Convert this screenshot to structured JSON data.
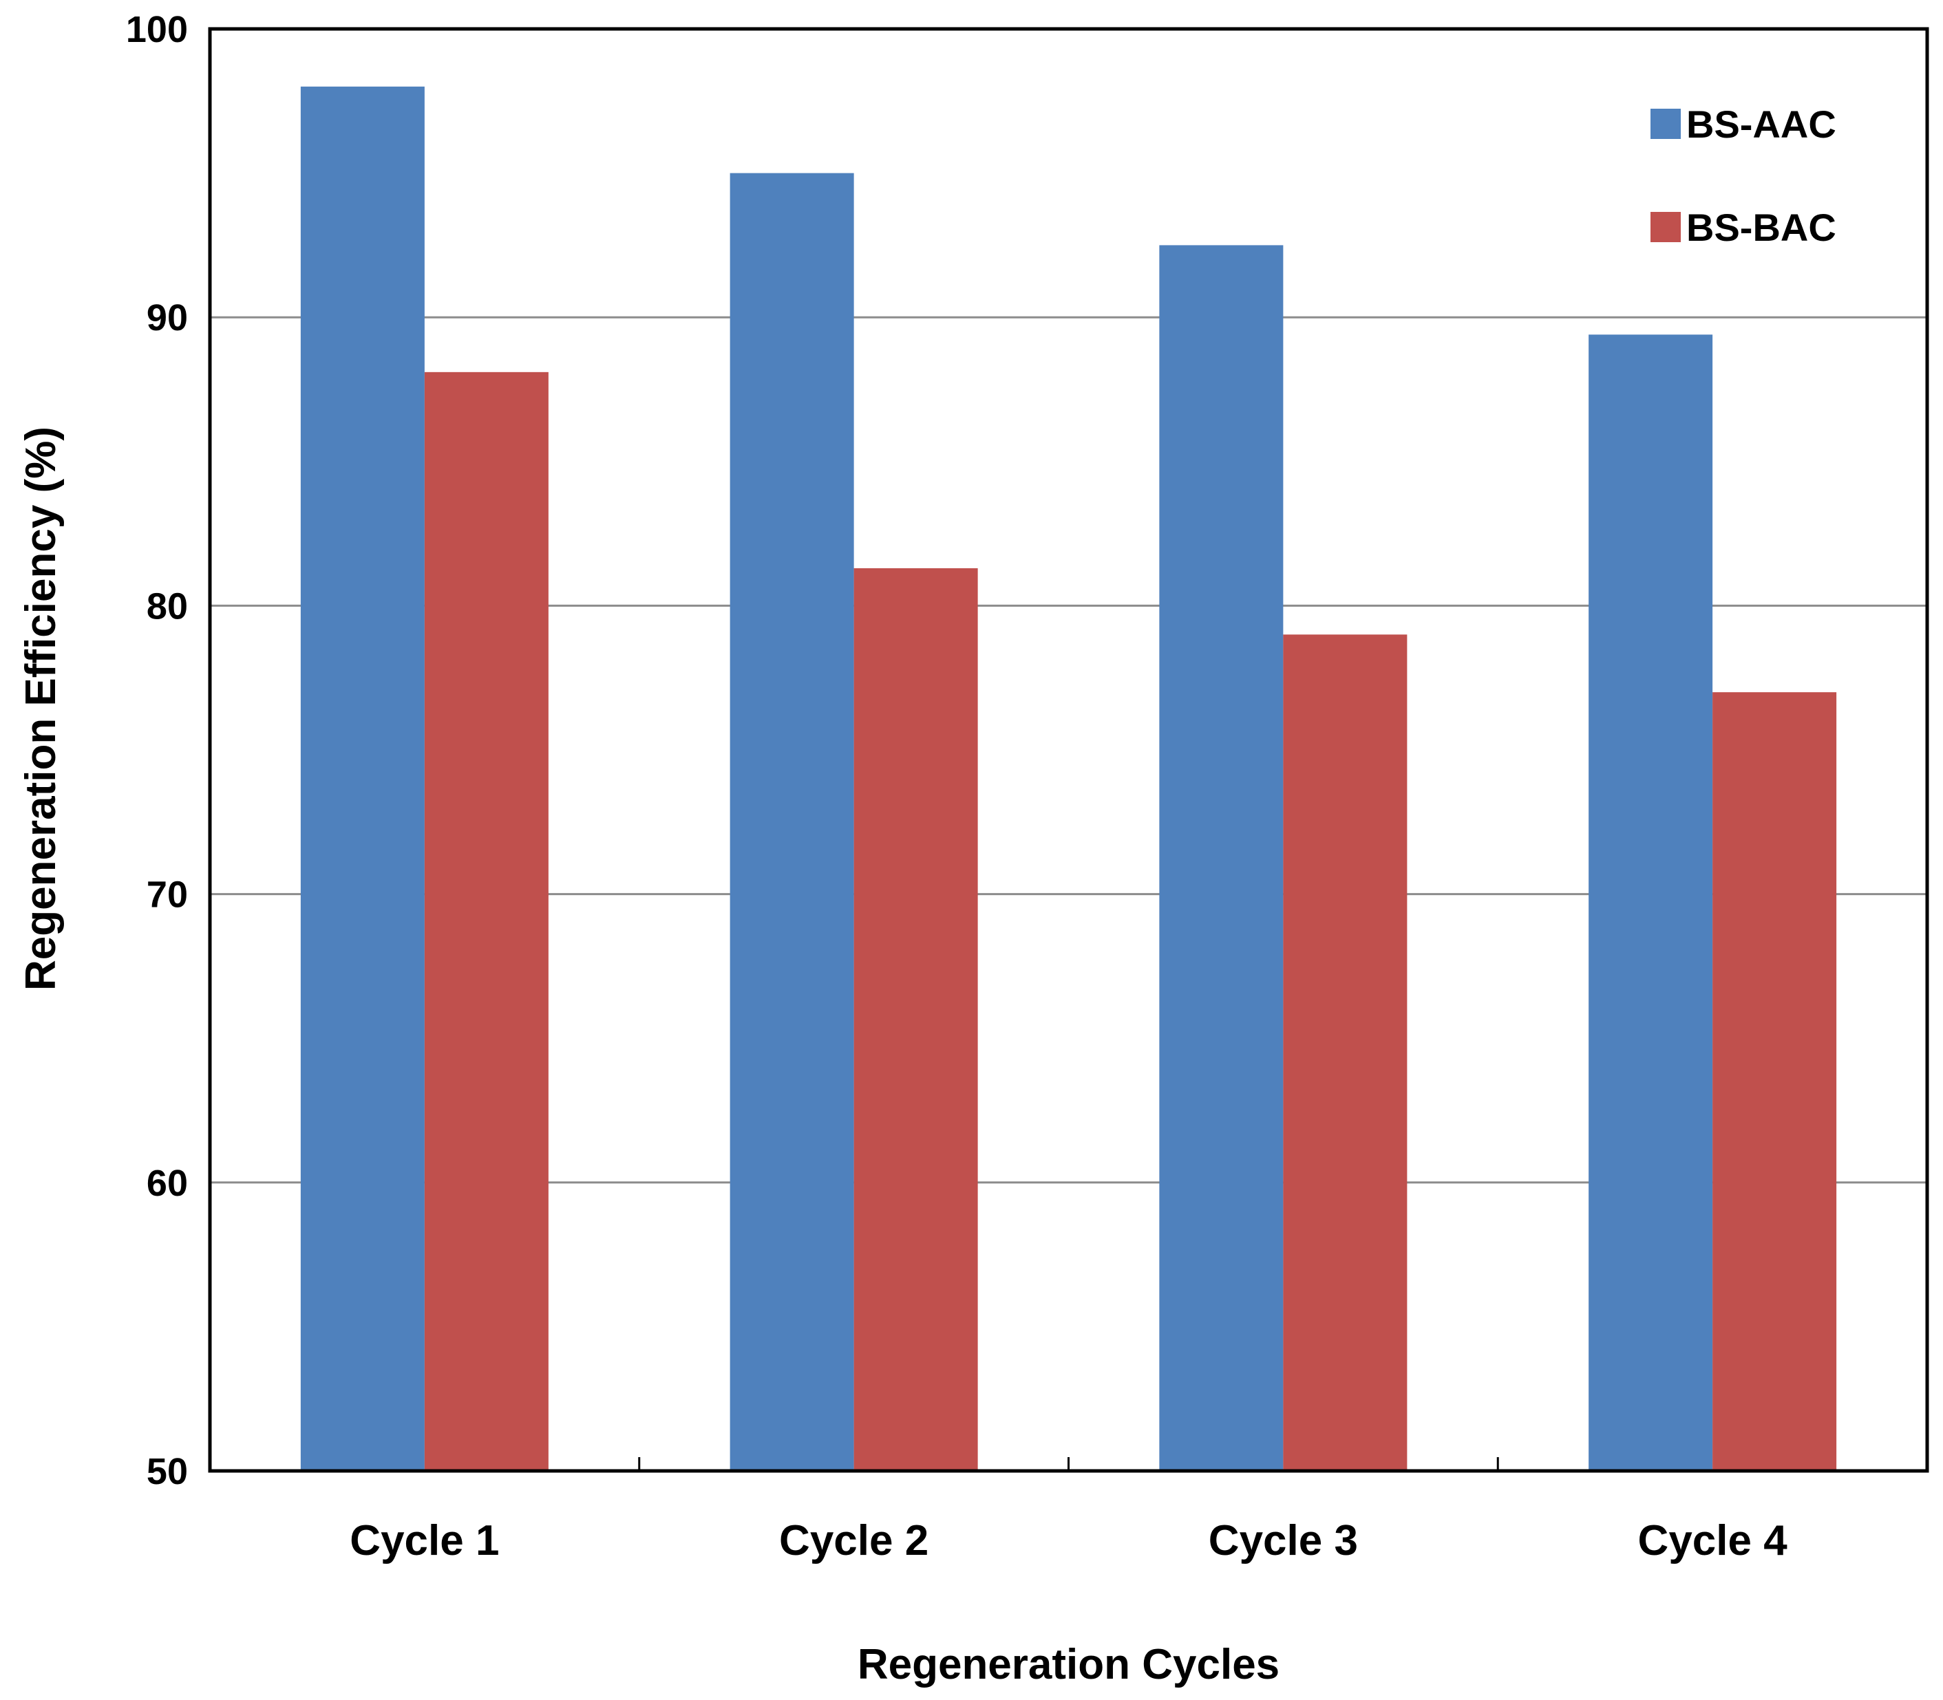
{
  "chart_data": {
    "type": "bar",
    "title": "",
    "xlabel": "Regeneration Cycles",
    "ylabel": "Regeneration Efficiency (%)",
    "ylim": [
      50,
      100
    ],
    "yticks": [
      "50",
      "60",
      "70",
      "80",
      "90",
      "100"
    ],
    "categories": [
      "Cycle 1",
      "Cycle 2",
      "Cycle 3",
      "Cycle 4"
    ],
    "series": [
      {
        "name": "BS-AAC",
        "color": "#4F81BD",
        "values": [
          98.0,
          95.0,
          92.5,
          89.4
        ]
      },
      {
        "name": "BS-BAC",
        "color": "#C0504D",
        "values": [
          88.1,
          81.3,
          79.0,
          77.0
        ]
      }
    ],
    "grid": true,
    "legend": "top-right"
  }
}
